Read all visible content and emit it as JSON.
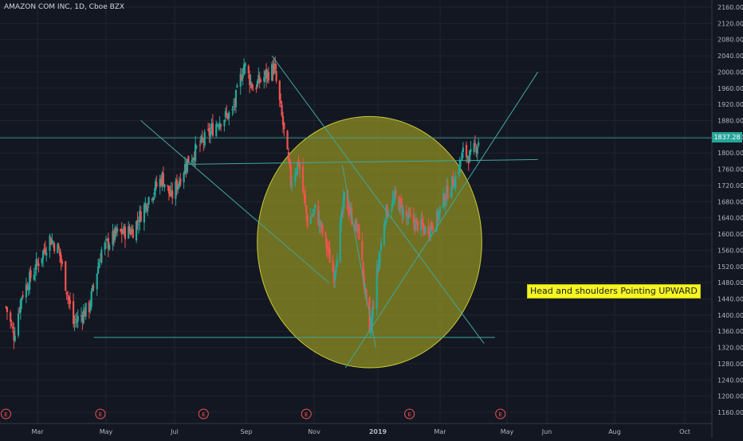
{
  "symbol_title": "AMAZON COM INC, 1D, Cboe BZX",
  "last_price_label": "1837.28",
  "annotation": "Head and shoulders Pointing UPWARD",
  "colors": {
    "up": "#26a69a",
    "down": "#ef5350",
    "background": "#131722",
    "grid": "#1f2430",
    "trendline": "#40a8a0",
    "circle_fill": "#a8a820",
    "annotation_bg": "#f5f523"
  },
  "earnings_marker": "E",
  "chart_data": {
    "type": "candlestick",
    "title": "AMAZON COM INC, 1D, Cboe BZX",
    "x_ticks": [
      "Mar",
      "May",
      "Jul",
      "Sep",
      "Nov",
      "2019",
      "Mar",
      "May",
      "Jun",
      "Aug",
      "Oct"
    ],
    "y_ticks": [
      2160,
      2120,
      2080,
      2040,
      2000,
      1960,
      1920,
      1880,
      1840,
      1800,
      1760,
      1720,
      1680,
      1640,
      1600,
      1560,
      1520,
      1480,
      1440,
      1400,
      1360,
      1320,
      1280,
      1240,
      1200,
      1160
    ],
    "ylim": [
      1140,
      2170
    ],
    "last_price": 1837.28,
    "earnings_dates": [
      "2018-02-01",
      "2018-04-26",
      "2018-07-26",
      "2018-10-25",
      "2019-01-31",
      "2019-04-25"
    ],
    "price_path": [
      [
        "2018-02-01",
        1420
      ],
      [
        "2018-02-08",
        1350
      ],
      [
        "2018-02-15",
        1450
      ],
      [
        "2018-02-26",
        1510
      ],
      [
        "2018-03-12",
        1590
      ],
      [
        "2018-03-20",
        1560
      ],
      [
        "2018-04-02",
        1380
      ],
      [
        "2018-04-16",
        1420
      ],
      [
        "2018-04-27",
        1560
      ],
      [
        "2018-05-10",
        1600
      ],
      [
        "2018-05-25",
        1610
      ],
      [
        "2018-06-08",
        1690
      ],
      [
        "2018-06-20",
        1740
      ],
      [
        "2018-06-28",
        1690
      ],
      [
        "2018-07-12",
        1780
      ],
      [
        "2018-07-26",
        1830
      ],
      [
        "2018-08-08",
        1880
      ],
      [
        "2018-08-20",
        1900
      ],
      [
        "2018-08-30",
        2020
      ],
      [
        "2018-09-07",
        1960
      ],
      [
        "2018-09-14",
        1980
      ],
      [
        "2018-09-26",
        2010
      ],
      [
        "2018-10-04",
        1870
      ],
      [
        "2018-10-11",
        1730
      ],
      [
        "2018-10-18",
        1780
      ],
      [
        "2018-10-26",
        1630
      ],
      [
        "2018-11-02",
        1660
      ],
      [
        "2018-11-12",
        1580
      ],
      [
        "2018-11-20",
        1500
      ],
      [
        "2018-11-30",
        1690
      ],
      [
        "2018-12-07",
        1640
      ],
      [
        "2018-12-14",
        1600
      ],
      [
        "2018-12-24",
        1345
      ],
      [
        "2018-12-31",
        1500
      ],
      [
        "2019-01-08",
        1650
      ],
      [
        "2019-01-18",
        1690
      ],
      [
        "2019-01-28",
        1640
      ],
      [
        "2019-02-04",
        1630
      ],
      [
        "2019-02-15",
        1610
      ],
      [
        "2019-02-25",
        1630
      ],
      [
        "2019-03-05",
        1690
      ],
      [
        "2019-03-15",
        1740
      ],
      [
        "2019-03-22",
        1800
      ],
      [
        "2019-03-29",
        1790
      ],
      [
        "2019-04-05",
        1830
      ]
    ],
    "drawings": {
      "horizontal_lines": [
        1837.28,
        1780,
        1345
      ],
      "trendlines": [
        {
          "from": [
            "2018-06-01",
            1880
          ],
          "to": [
            "2018-11-15",
            1480
          ]
        },
        {
          "from": [
            "2018-09-24",
            2040
          ],
          "to": [
            "2019-04-10",
            1330
          ]
        },
        {
          "from": [
            "2018-12-01",
            1270
          ],
          "to": [
            "2019-05-25",
            2000
          ]
        },
        {
          "from": [
            "2018-11-28",
            1770
          ],
          "to": [
            "2018-12-30",
            1320
          ]
        }
      ],
      "ellipse": {
        "center": [
          "2018-12-24",
          1580
        ],
        "x_radius_days": 105,
        "y_radius": 310
      }
    }
  }
}
